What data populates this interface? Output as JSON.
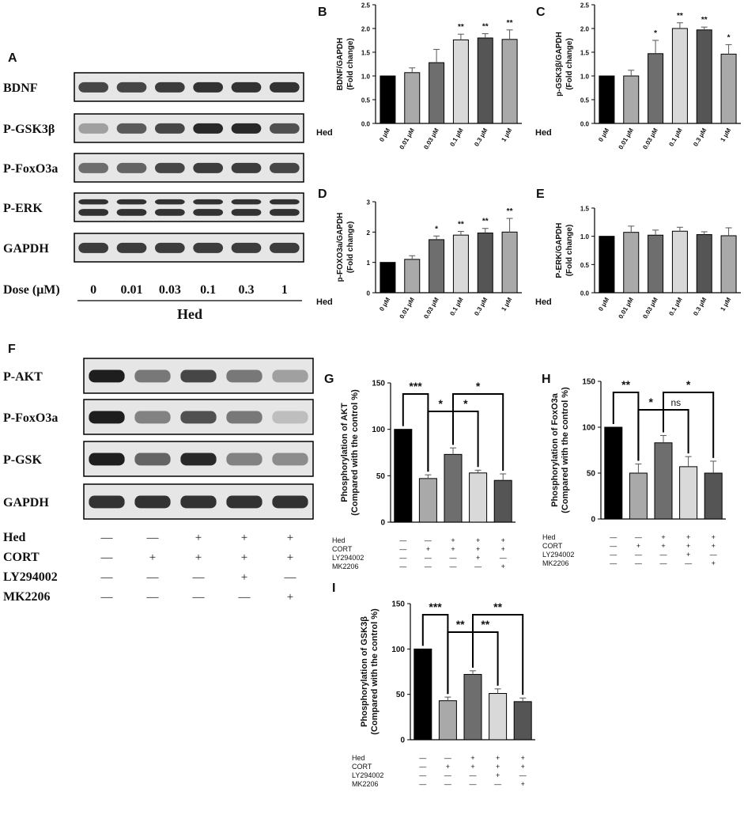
{
  "colors": {
    "bar_black": "#000000",
    "bar_mid": "#8c8c8c",
    "bar_dark": "#6e6e6e",
    "bar_light": "#d9d9d9",
    "bar_darker": "#555555",
    "bar_gray": "#a9a9a9",
    "blot_band": "#2b2b2b",
    "blot_bg": "#e6e6e6"
  },
  "panel_labels": [
    "A",
    "B",
    "C",
    "D",
    "E",
    "F",
    "G",
    "H",
    "I"
  ],
  "blot_A": {
    "rows": [
      "BDNF",
      "P-GSK3β",
      "P-FoxO3a",
      "P-ERK",
      "GAPDH"
    ],
    "dose_label": "Dose (μM)",
    "doses": [
      "0",
      "0.01",
      "0.03",
      "0.1",
      "0.3",
      "1"
    ],
    "group_label": "Hed",
    "intensity": [
      [
        0.8,
        0.8,
        0.85,
        0.9,
        0.9,
        0.9
      ],
      [
        0.35,
        0.7,
        0.8,
        0.95,
        0.95,
        0.75
      ],
      [
        0.6,
        0.65,
        0.8,
        0.85,
        0.85,
        0.8
      ],
      [
        0.9,
        0.9,
        0.9,
        0.9,
        0.9,
        0.9
      ],
      [
        0.85,
        0.85,
        0.85,
        0.85,
        0.85,
        0.85
      ]
    ]
  },
  "blot_F": {
    "rows": [
      "P-AKT",
      "P-FoxO3a",
      "P-GSK",
      "GAPDH"
    ],
    "intensity": [
      [
        1.0,
        0.55,
        0.8,
        0.55,
        0.35
      ],
      [
        1.0,
        0.5,
        0.75,
        0.55,
        0.2
      ],
      [
        1.0,
        0.65,
        0.95,
        0.5,
        0.45
      ],
      [
        0.9,
        0.9,
        0.9,
        0.9,
        0.9
      ]
    ],
    "treatments": [
      {
        "name": "Hed",
        "marks": [
          "—",
          "—",
          "+",
          "+",
          "+"
        ]
      },
      {
        "name": "CORT",
        "marks": [
          "—",
          "+",
          "+",
          "+",
          "+"
        ]
      },
      {
        "name": "LY294002",
        "marks": [
          "—",
          "—",
          "—",
          "+",
          "—"
        ]
      },
      {
        "name": "MK2206",
        "marks": [
          "—",
          "—",
          "—",
          "—",
          "+"
        ]
      }
    ]
  },
  "chart_data": [
    {
      "panel": "B",
      "type": "bar",
      "ylabel": "BDNF/GAPDH\n(Fold change)",
      "ylim": [
        0,
        2.5
      ],
      "yticks": [
        "0.0",
        "0.5",
        "1.0",
        "1.5",
        "2.0",
        "2.5"
      ],
      "group_label": "Hed",
      "categories": [
        "0 μM",
        "0.01 μM",
        "0.03 μM",
        "0.1 μM",
        "0.3 μM",
        "1 μM"
      ],
      "values": [
        1.0,
        1.07,
        1.28,
        1.76,
        1.8,
        1.77
      ],
      "errors": [
        0,
        0.1,
        0.28,
        0.12,
        0.09,
        0.2
      ],
      "sig": [
        "",
        "",
        "",
        "**",
        "**",
        "**"
      ]
    },
    {
      "panel": "C",
      "type": "bar",
      "ylabel": "p-GSK3β/GAPDH\n(Fold change)",
      "ylim": [
        0,
        2.5
      ],
      "yticks": [
        "0.0",
        "0.5",
        "1.0",
        "1.5",
        "2.0",
        "2.5"
      ],
      "group_label": "Hed",
      "categories": [
        "0 μM",
        "0.01 μM",
        "0.03 μM",
        "0.1 μM",
        "0.3 μM",
        "1 μM"
      ],
      "values": [
        1.0,
        1.0,
        1.47,
        2.0,
        1.97,
        1.46
      ],
      "errors": [
        0,
        0.12,
        0.28,
        0.12,
        0.06,
        0.2
      ],
      "sig": [
        "",
        "",
        "*",
        "**",
        "**",
        "*"
      ]
    },
    {
      "panel": "D",
      "type": "bar",
      "ylabel": "p-FOXO3a/GAPDH\n(Fold change)",
      "ylim": [
        0,
        3
      ],
      "yticks": [
        "0",
        "1",
        "2",
        "3"
      ],
      "group_label": "Hed",
      "categories": [
        "0 μM",
        "0.01 μM",
        "0.03 μM",
        "0.1 μM",
        "0.3 μM",
        "1 μM"
      ],
      "values": [
        1.0,
        1.1,
        1.75,
        1.9,
        1.97,
        2.0
      ],
      "errors": [
        0,
        0.12,
        0.12,
        0.12,
        0.15,
        0.45
      ],
      "sig": [
        "",
        "",
        "*",
        "**",
        "**",
        "**"
      ]
    },
    {
      "panel": "E",
      "type": "bar",
      "ylabel": "P-ERK/GAPDH\n(Fold change)",
      "ylim": [
        0,
        1.5
      ],
      "yticks": [
        "0.0",
        "0.5",
        "1.0",
        "1.5"
      ],
      "group_label": "Hed",
      "categories": [
        "0 μM",
        "0.01 μM",
        "0.03 μM",
        "0.1 μM",
        "0.3 μM",
        "1 μM"
      ],
      "values": [
        1.0,
        1.07,
        1.02,
        1.09,
        1.03,
        1.01
      ],
      "errors": [
        0,
        0.11,
        0.09,
        0.07,
        0.05,
        0.14
      ],
      "sig": [
        "",
        "",
        "",
        "",
        "",
        ""
      ]
    },
    {
      "panel": "G",
      "type": "bar",
      "ylabel": "Phosphorylation of AKT\n(Compared with the control %)",
      "ylim": [
        0,
        150
      ],
      "yticks": [
        "0",
        "50",
        "100",
        "150"
      ],
      "values": [
        100,
        47,
        73,
        53,
        45
      ],
      "errors": [
        0,
        4,
        7,
        3,
        7
      ],
      "brackets": [
        {
          "from": 0,
          "to": 1,
          "label": "***",
          "level": 0
        },
        {
          "from": 1,
          "to": 2,
          "label": "*",
          "level": 1
        },
        {
          "from": 2,
          "to": 3,
          "label": "*",
          "level": 2
        },
        {
          "from": 2,
          "to": 4,
          "label": "*",
          "level": 3
        }
      ],
      "treatments": [
        {
          "name": "Hed",
          "marks": [
            "—",
            "—",
            "+",
            "+",
            "+"
          ]
        },
        {
          "name": "CORT",
          "marks": [
            "—",
            "+",
            "+",
            "+",
            "+"
          ]
        },
        {
          "name": "LY294002",
          "marks": [
            "—",
            "—",
            "—",
            "+",
            "—"
          ]
        },
        {
          "name": "MK2206",
          "marks": [
            "—",
            "—",
            "—",
            "—",
            "+"
          ]
        }
      ]
    },
    {
      "panel": "H",
      "type": "bar",
      "ylabel": "Phosphorylation of FoxO3a\n(Compared with the control %)",
      "ylim": [
        0,
        150
      ],
      "yticks": [
        "0",
        "50",
        "100",
        "150"
      ],
      "values": [
        100,
        50,
        83,
        57,
        50
      ],
      "errors": [
        0,
        10,
        8,
        11,
        13
      ],
      "brackets": [
        {
          "from": 0,
          "to": 1,
          "label": "**",
          "level": 0
        },
        {
          "from": 1,
          "to": 2,
          "label": "*",
          "level": 1
        },
        {
          "from": 2,
          "to": 3,
          "label": "ns",
          "level": 2
        },
        {
          "from": 2,
          "to": 4,
          "label": "*",
          "level": 3
        }
      ],
      "treatments": [
        {
          "name": "Hed",
          "marks": [
            "—",
            "—",
            "+",
            "+",
            "+"
          ]
        },
        {
          "name": "CORT",
          "marks": [
            "—",
            "+",
            "+",
            "+",
            "+"
          ]
        },
        {
          "name": "LY294002",
          "marks": [
            "—",
            "—",
            "—",
            "+",
            "—"
          ]
        },
        {
          "name": "MK2206",
          "marks": [
            "—",
            "—",
            "—",
            "—",
            "+"
          ]
        }
      ]
    },
    {
      "panel": "I",
      "type": "bar",
      "ylabel": "Phosphorylation of GSK3β\n(Compared with the control %)",
      "ylim": [
        0,
        150
      ],
      "yticks": [
        "0",
        "50",
        "100",
        "150"
      ],
      "values": [
        100,
        43,
        72,
        51,
        42
      ],
      "errors": [
        0,
        4,
        4,
        5,
        4
      ],
      "brackets": [
        {
          "from": 0,
          "to": 1,
          "label": "***",
          "level": 0
        },
        {
          "from": 1,
          "to": 2,
          "label": "**",
          "level": 1
        },
        {
          "from": 2,
          "to": 3,
          "label": "**",
          "level": 2
        },
        {
          "from": 2,
          "to": 4,
          "label": "**",
          "level": 3
        }
      ],
      "treatments": [
        {
          "name": "Hed",
          "marks": [
            "—",
            "—",
            "+",
            "+",
            "+"
          ]
        },
        {
          "name": "CORT",
          "marks": [
            "—",
            "+",
            "+",
            "+",
            "+"
          ]
        },
        {
          "name": "LY294002",
          "marks": [
            "—",
            "—",
            "—",
            "+",
            "—"
          ]
        },
        {
          "name": "MK2206",
          "marks": [
            "—",
            "—",
            "—",
            "—",
            "+"
          ]
        }
      ]
    }
  ]
}
